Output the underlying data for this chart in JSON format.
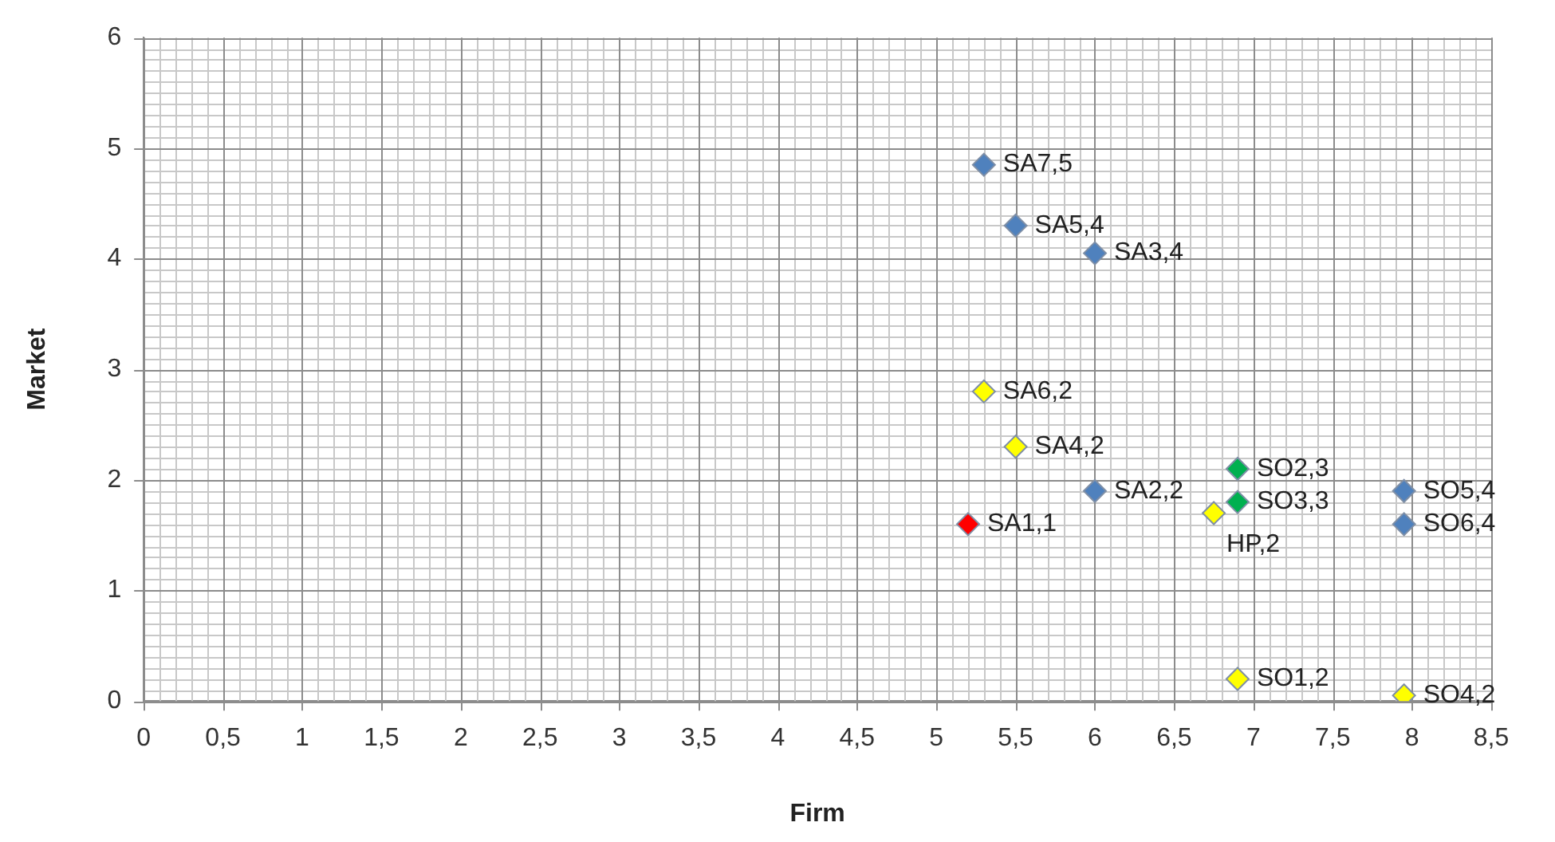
{
  "chart_data": {
    "type": "scatter",
    "xlabel": "Firm",
    "ylabel": "Market",
    "xlim": [
      0,
      8.5
    ],
    "ylim": [
      0,
      6
    ],
    "xticks": [
      0,
      {
        "value": 0.5,
        "label": "0,5"
      },
      1,
      {
        "value": 1.5,
        "label": "1,5"
      },
      2,
      {
        "value": 2.5,
        "label": "2,5"
      },
      3,
      {
        "value": 3.5,
        "label": "3,5"
      },
      4,
      {
        "value": 4.5,
        "label": "4,5"
      },
      5,
      {
        "value": 5.5,
        "label": "5,5"
      },
      6,
      {
        "value": 6.5,
        "label": "6,5"
      },
      7,
      {
        "value": 7.5,
        "label": "7,5"
      },
      8,
      {
        "value": 8.5,
        "label": "8,5"
      }
    ],
    "yticks": [
      0,
      1,
      2,
      3,
      4,
      5,
      6
    ],
    "grid": true,
    "legend": false,
    "marker": "diamond",
    "series": [
      {
        "color": "#4f81bd",
        "x": [
          5.3,
          5.5,
          6.0,
          6.0,
          7.95,
          7.95
        ],
        "values": [
          4.85,
          4.3,
          4.05,
          1.9,
          1.9,
          1.6
        ]
      },
      {
        "color": "#ffff00",
        "x": [
          5.3,
          5.5,
          6.75,
          6.9,
          7.95
        ],
        "values": [
          2.8,
          2.3,
          1.7,
          0.2,
          0.05
        ]
      },
      {
        "color": "#00b050",
        "x": [
          6.9,
          6.9
        ],
        "values": [
          2.1,
          1.8
        ]
      },
      {
        "color": "#ff0000",
        "x": [
          5.2
        ],
        "values": [
          1.6
        ]
      }
    ],
    "annotations": [
      {
        "text": "SA7,5",
        "x": 5.3,
        "y": 4.85
      },
      {
        "text": "SA5,4",
        "x": 5.5,
        "y": 4.3
      },
      {
        "text": "SA3,4",
        "x": 6.0,
        "y": 4.05
      },
      {
        "text": "SA2,2",
        "x": 6.0,
        "y": 1.9
      },
      {
        "text": "SO5,4",
        "x": 7.95,
        "y": 1.9
      },
      {
        "text": "SO6,4",
        "x": 7.95,
        "y": 1.6
      },
      {
        "text": "SA6,2",
        "x": 5.3,
        "y": 2.8
      },
      {
        "text": "SA4,2",
        "x": 5.5,
        "y": 2.3
      },
      {
        "text": "HP,2",
        "x": 6.75,
        "y": 1.7
      },
      {
        "text": "SO1,2",
        "x": 6.9,
        "y": 0.2
      },
      {
        "text": "SO4,2",
        "x": 7.95,
        "y": 0.05
      },
      {
        "text": "SO2,3",
        "x": 6.9,
        "y": 2.1
      },
      {
        "text": "SO3,3",
        "x": 6.9,
        "y": 1.8
      },
      {
        "text": "SA1,1",
        "x": 5.2,
        "y": 1.6
      }
    ]
  }
}
